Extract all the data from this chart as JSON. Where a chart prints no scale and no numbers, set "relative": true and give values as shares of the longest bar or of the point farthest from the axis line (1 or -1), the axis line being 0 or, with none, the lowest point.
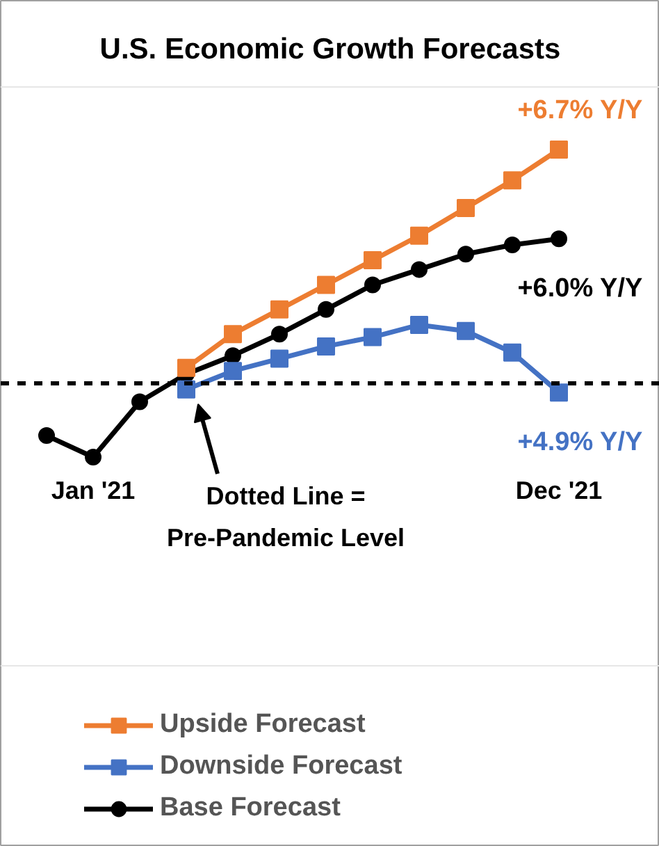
{
  "chart_data": {
    "type": "line",
    "title": "U.S. Economic Growth Forecasts",
    "relative": true,
    "legend": "bottom",
    "categories": [
      null,
      "Jan '21",
      null,
      null,
      null,
      null,
      null,
      null,
      null,
      null,
      null,
      "Dec '21"
    ],
    "series": [
      {
        "name": "Upside Forecast",
        "color": "#ed7d31",
        "marker": "square",
        "values": [
          null,
          null,
          null,
          0.29,
          0.4,
          0.48,
          0.56,
          0.64,
          0.72,
          0.81,
          0.9,
          1.0
        ]
      },
      {
        "name": "Downside Forecast",
        "color": "#4472c4",
        "marker": "square",
        "values": [
          null,
          null,
          null,
          0.22,
          0.28,
          0.32,
          0.36,
          0.39,
          0.43,
          0.41,
          0.34,
          0.21
        ]
      },
      {
        "name": "Base Forecast",
        "color": "#000000",
        "marker": "circle",
        "values": [
          0.07,
          0.0,
          0.18,
          0.27,
          0.33,
          0.4,
          0.48,
          0.56,
          0.61,
          0.66,
          0.69,
          0.71
        ]
      }
    ],
    "ref_lines": [
      {
        "axis": "y",
        "value": 0.24,
        "color": "#000000",
        "line_style": "dashed"
      }
    ],
    "annotations": [
      "+6.7% Y/Y",
      "+4.9% Y/Y",
      "+6.0% Y/Y",
      "Dotted Line =\nPre-Pandemic Level"
    ]
  }
}
